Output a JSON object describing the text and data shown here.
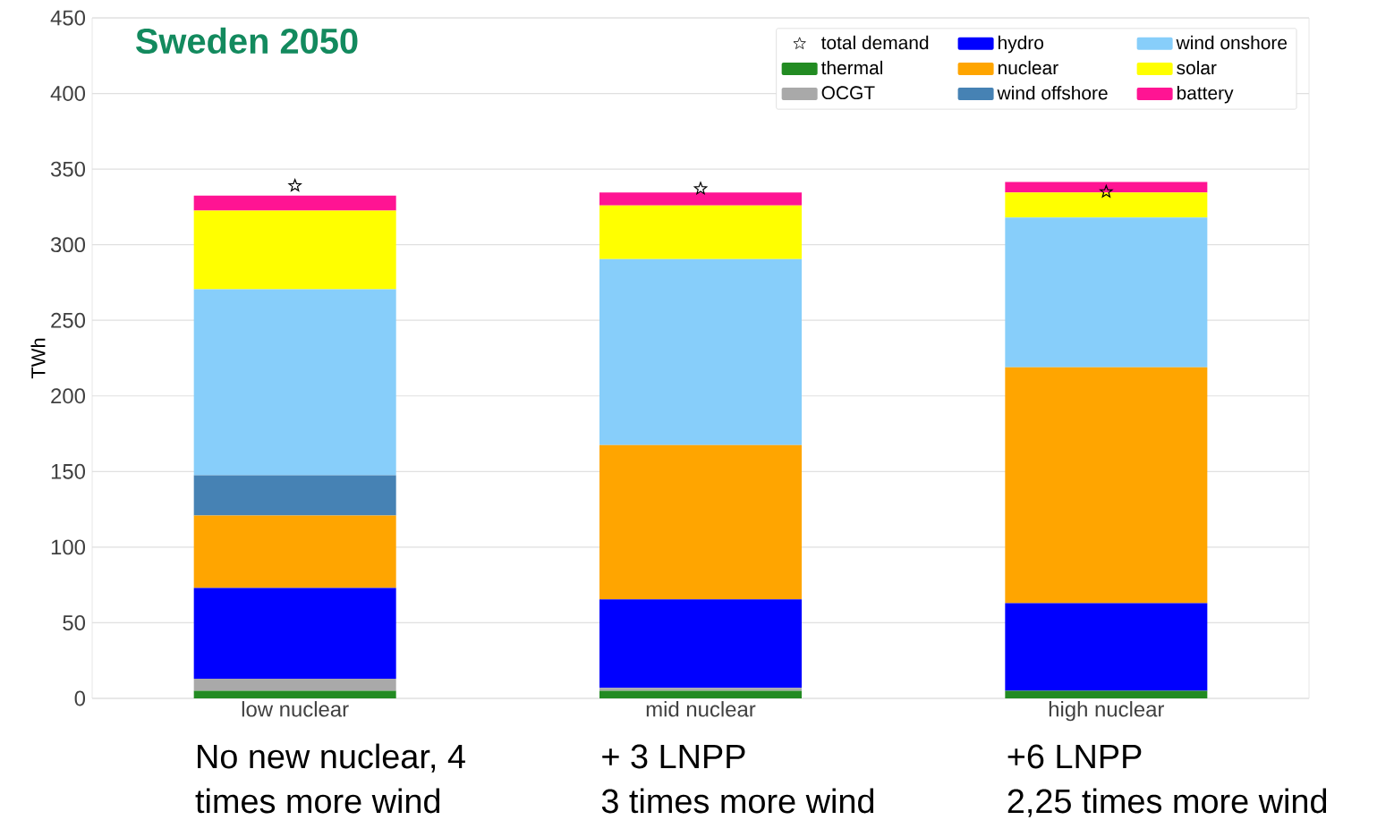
{
  "chart_data": {
    "type": "bar",
    "stacked": true,
    "title": "Sweden 2050",
    "ylabel": "TWh",
    "categories": [
      "low nuclear",
      "mid nuclear",
      "high nuclear"
    ],
    "series": [
      {
        "name": "total demand",
        "type": "scatter",
        "marker": "star",
        "color": "#000000",
        "x": [
          "low nuclear",
          "mid nuclear",
          "high nuclear"
        ],
        "values": [
          339,
          337,
          335
        ]
      },
      {
        "name": "thermal",
        "color": "#228b22",
        "values": [
          5,
          5,
          5
        ]
      },
      {
        "name": "OCGT",
        "color": "#a9a9a9",
        "values": [
          8,
          2,
          0
        ]
      },
      {
        "name": "hydro",
        "color": "#0000ff",
        "values": [
          60,
          58.5,
          58
        ]
      },
      {
        "name": "nuclear",
        "color": "#ffa500",
        "values": [
          48,
          102,
          156
        ]
      },
      {
        "name": "wind offshore",
        "color": "#4682b4",
        "values": [
          26.5,
          0,
          0
        ]
      },
      {
        "name": "wind onshore",
        "color": "#87cefa",
        "values": [
          123,
          123,
          99
        ]
      },
      {
        "name": "solar",
        "color": "#ffff00",
        "values": [
          52,
          35.5,
          16.5
        ]
      },
      {
        "name": "battery",
        "color": "#ff1493",
        "values": [
          10,
          8.5,
          7
        ]
      }
    ],
    "ylim": [
      0,
      450
    ],
    "yticks": [
      0,
      50,
      100,
      150,
      200,
      250,
      300,
      350,
      400,
      450
    ],
    "grid": "y",
    "legend": "top right",
    "annotations": [
      "No new nuclear, 4",
      "times more wind",
      "+ 3 LNPP",
      "3 times more wind",
      "+6 LNPP",
      "2,25 times more wind"
    ]
  }
}
